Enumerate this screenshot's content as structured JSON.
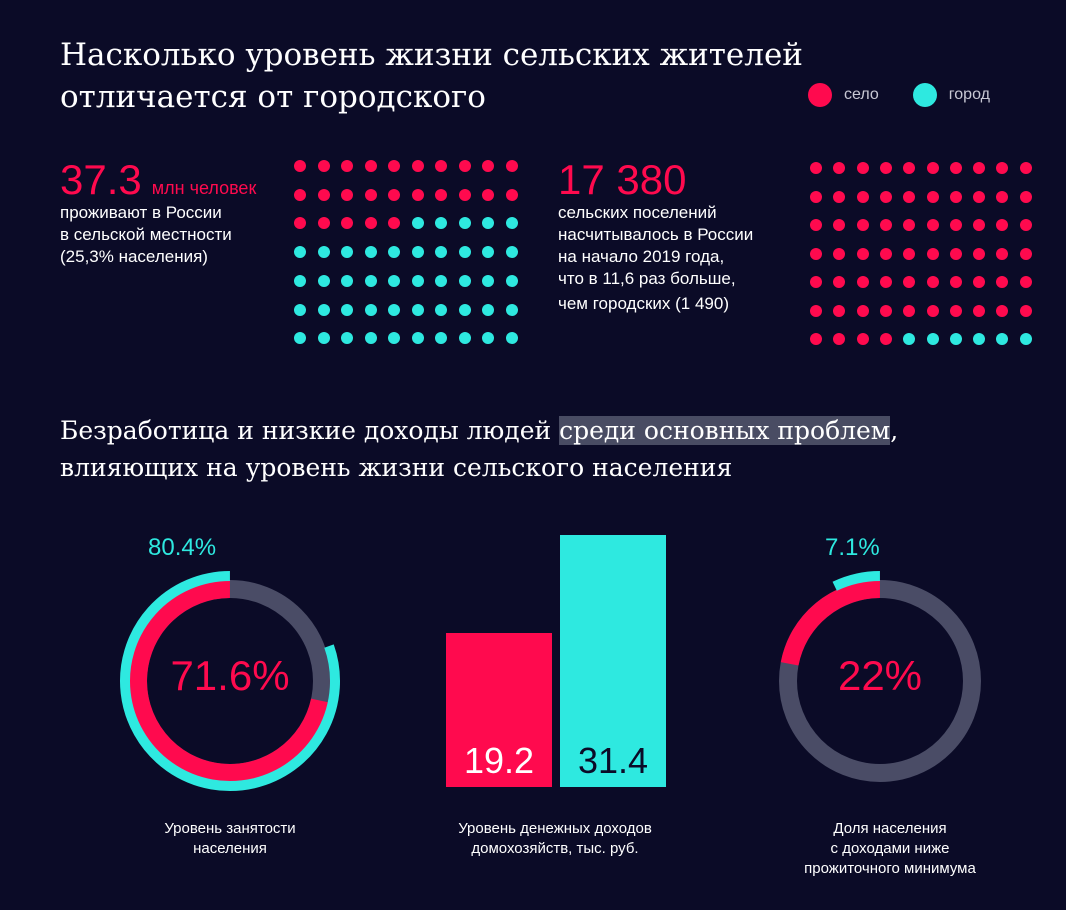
{
  "header": {
    "title_line1": "Насколько уровень жизни сельских жителей",
    "title_line2": "отличается от городского"
  },
  "legend": [
    {
      "label": "село",
      "color": "#ff0a4e"
    },
    {
      "label": "город",
      "color": "#2ee9e0"
    }
  ],
  "stat_population": {
    "value": "37.3",
    "unit": "млн человек",
    "line1": "проживают в России",
    "line2": "в сельской местности",
    "line3": "(25,3% населения)"
  },
  "stat_settlements": {
    "value": "17 380",
    "line1": "сельских поселений",
    "line2": "насчитывалось в России",
    "line3": "на начало 2019 года,",
    "line4": "что в 11,6 раз больше,",
    "line5": "чем городских (1 490)"
  },
  "subtitle": {
    "part1": "Безработица и низкие доходы людей ",
    "highlight": "среди основных проблем",
    "part2": ",",
    "line2": "влияющих на уровень жизни сельского населения"
  },
  "colors": {
    "rural": "#ff0a4e",
    "urban": "#2ee9e0",
    "track": "#4a4c66",
    "bg": "#0b0b27"
  },
  "chart_data": [
    {
      "type": "pictogram",
      "rows": 7,
      "cols": 10,
      "rural_count": 25,
      "rural_order": "top-left first"
    },
    {
      "type": "pictogram",
      "rows": 7,
      "cols": 10,
      "rural_count": 64,
      "urban_positions": "bottom row, columns 5-10"
    },
    {
      "type": "donut",
      "title": "Уровень занятости населения",
      "series": [
        {
          "name": "село",
          "value": 71.6,
          "label": "71.6%"
        },
        {
          "name": "город",
          "value": 80.4,
          "label": "80.4%"
        }
      ],
      "ylim": [
        0,
        100
      ]
    },
    {
      "type": "bar",
      "title": "Уровень денежных доходов домохозяйств, тыс. руб.",
      "categories": [
        "село",
        "город"
      ],
      "values": [
        19.2,
        31.4
      ],
      "labels": [
        "19.2",
        "31.4"
      ]
    },
    {
      "type": "donut",
      "title": "Доля населения с доходами ниже прожиточного минимума",
      "series": [
        {
          "name": "село",
          "value": 22,
          "label": "22%"
        },
        {
          "name": "город",
          "value": 7.1,
          "label": "7.1%"
        }
      ],
      "ylim": [
        0,
        100
      ]
    }
  ],
  "captions": {
    "employment_line1": "Уровень занятости",
    "employment_line2": "населения",
    "income_line1": "Уровень денежных доходов",
    "income_line2": "домохозяйств, тыс. руб.",
    "poverty_line1": "Доля населения",
    "poverty_line2": "с доходами ниже",
    "poverty_line3": "прожиточного минимума"
  }
}
